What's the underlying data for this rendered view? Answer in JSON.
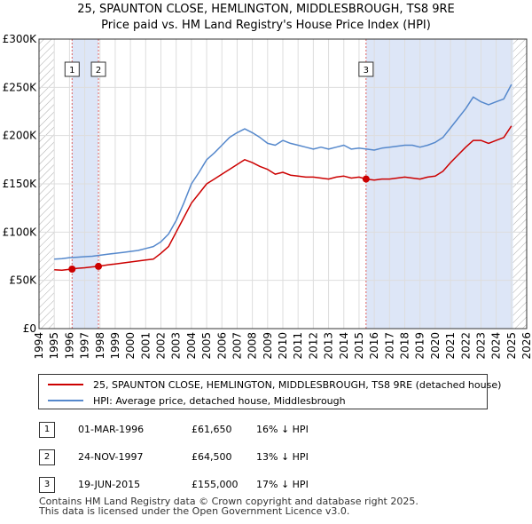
{
  "title_line1": "25, SPAUNTON CLOSE, HEMLINGTON, MIDDLESBROUGH, TS8 9RE",
  "title_line2": "Price paid vs. HM Land Registry's House Price Index (HPI)",
  "chart_data": {
    "type": "line",
    "title": "25, SPAUNTON CLOSE, HEMLINGTON, MIDDLESBROUGH, TS8 9RE — Price paid vs. HM Land Registry's House Price Index (HPI)",
    "xlim": [
      1994,
      2026
    ],
    "ylim": [
      0,
      300000
    ],
    "x_ticks": [
      1994,
      1995,
      1996,
      1997,
      1998,
      1999,
      2000,
      2001,
      2002,
      2003,
      2004,
      2005,
      2006,
      2007,
      2008,
      2009,
      2010,
      2011,
      2012,
      2013,
      2014,
      2015,
      2016,
      2017,
      2018,
      2019,
      2020,
      2021,
      2022,
      2023,
      2024,
      2025,
      2026
    ],
    "y_ticks": [
      {
        "value": 0,
        "label": "£0"
      },
      {
        "value": 50000,
        "label": "£50K"
      },
      {
        "value": 100000,
        "label": "£100K"
      },
      {
        "value": 150000,
        "label": "£150K"
      },
      {
        "value": 200000,
        "label": "£200K"
      },
      {
        "value": 250000,
        "label": "£250K"
      },
      {
        "value": 300000,
        "label": "£300K"
      }
    ],
    "grid": true,
    "colors": {
      "property": "#cc0000",
      "hpi": "#5588cc",
      "shade": "#dde6f7",
      "vline": "#e06060",
      "hatch": "#999999"
    },
    "shaded_periods": [
      [
        1996.17,
        1997.9
      ],
      [
        2015.46,
        2025.1
      ]
    ],
    "hatched_periods": [
      [
        1994,
        1995
      ],
      [
        2025.1,
        2026
      ]
    ],
    "series": [
      {
        "name": "25, SPAUNTON CLOSE, HEMLINGTON, MIDDLESBROUGH, TS8 9RE (detached house)",
        "color": "#cc0000",
        "x": [
          1995.0,
          1995.5,
          1996.0,
          1996.17,
          1996.5,
          1997.0,
          1997.5,
          1997.9,
          1998.5,
          1999.0,
          1999.5,
          2000.0,
          2000.5,
          2001.0,
          2001.5,
          2002.0,
          2002.5,
          2003.0,
          2003.5,
          2004.0,
          2004.5,
          2005.0,
          2005.5,
          2006.0,
          2006.5,
          2007.0,
          2007.5,
          2008.0,
          2008.5,
          2009.0,
          2009.5,
          2010.0,
          2010.5,
          2011.0,
          2011.5,
          2012.0,
          2012.5,
          2013.0,
          2013.5,
          2014.0,
          2014.5,
          2015.0,
          2015.46,
          2016.0,
          2016.5,
          2017.0,
          2017.5,
          2018.0,
          2018.5,
          2019.0,
          2019.5,
          2020.0,
          2020.5,
          2021.0,
          2021.5,
          2022.0,
          2022.5,
          2023.0,
          2023.5,
          2024.0,
          2024.5,
          2025.0
        ],
        "y": [
          61000,
          60500,
          61500,
          61650,
          62500,
          63000,
          64000,
          64500,
          66000,
          67000,
          68000,
          69000,
          70000,
          71000,
          72000,
          78000,
          85000,
          100000,
          115000,
          130000,
          140000,
          150000,
          155000,
          160000,
          165000,
          170000,
          175000,
          172000,
          168000,
          165000,
          160000,
          162000,
          159000,
          158000,
          157000,
          157000,
          156000,
          155000,
          157000,
          158000,
          156000,
          157000,
          155000,
          154000,
          155000,
          155000,
          156000,
          157000,
          156000,
          155000,
          157000,
          158000,
          163000,
          172000,
          180000,
          188000,
          195000,
          195000,
          192000,
          195000,
          198000,
          210000
        ]
      },
      {
        "name": "HPI: Average price, detached house, Middlesbrough",
        "color": "#5588cc",
        "x": [
          1995.0,
          1995.5,
          1996.0,
          1996.5,
          1997.0,
          1997.5,
          1998.0,
          1998.5,
          1999.0,
          1999.5,
          2000.0,
          2000.5,
          2001.0,
          2001.5,
          2002.0,
          2002.5,
          2003.0,
          2003.5,
          2004.0,
          2004.5,
          2005.0,
          2005.5,
          2006.0,
          2006.5,
          2007.0,
          2007.5,
          2008.0,
          2008.5,
          2009.0,
          2009.5,
          2010.0,
          2010.5,
          2011.0,
          2011.5,
          2012.0,
          2012.5,
          2013.0,
          2013.5,
          2014.0,
          2014.5,
          2015.0,
          2015.5,
          2016.0,
          2016.5,
          2017.0,
          2017.5,
          2018.0,
          2018.5,
          2019.0,
          2019.5,
          2020.0,
          2020.5,
          2021.0,
          2021.5,
          2022.0,
          2022.5,
          2023.0,
          2023.5,
          2024.0,
          2024.5,
          2025.0
        ],
        "y": [
          72000,
          72500,
          73500,
          74000,
          74500,
          75000,
          76000,
          77000,
          78000,
          79000,
          80000,
          81000,
          83000,
          85000,
          90000,
          98000,
          112000,
          130000,
          150000,
          162000,
          175000,
          182000,
          190000,
          198000,
          203000,
          207000,
          203000,
          198000,
          192000,
          190000,
          195000,
          192000,
          190000,
          188000,
          186000,
          188000,
          186000,
          188000,
          190000,
          186000,
          187000,
          186000,
          185000,
          187000,
          188000,
          189000,
          190000,
          190000,
          188000,
          190000,
          193000,
          198000,
          208000,
          218000,
          228000,
          240000,
          235000,
          232000,
          235000,
          238000,
          253000
        ]
      }
    ],
    "sale_markers": [
      {
        "label": "1",
        "x": 1996.17,
        "y": 61650
      },
      {
        "label": "2",
        "x": 1997.9,
        "y": 64500
      },
      {
        "label": "3",
        "x": 2015.46,
        "y": 155000
      }
    ]
  },
  "legend": {
    "property_label": "25, SPAUNTON CLOSE, HEMLINGTON, MIDDLESBROUGH, TS8 9RE (detached house)",
    "hpi_label": "HPI: Average price, detached house, Middlesbrough"
  },
  "sales": [
    {
      "num": "1",
      "date": "01-MAR-1996",
      "price": "£61,650",
      "hpi": "16% ↓ HPI"
    },
    {
      "num": "2",
      "date": "24-NOV-1997",
      "price": "£64,500",
      "hpi": "13% ↓ HPI"
    },
    {
      "num": "3",
      "date": "19-JUN-2015",
      "price": "£155,000",
      "hpi": "17% ↓ HPI"
    }
  ],
  "footer_line1": "Contains HM Land Registry data © Crown copyright and database right 2025.",
  "footer_line2": "This data is licensed under the Open Government Licence v3.0."
}
